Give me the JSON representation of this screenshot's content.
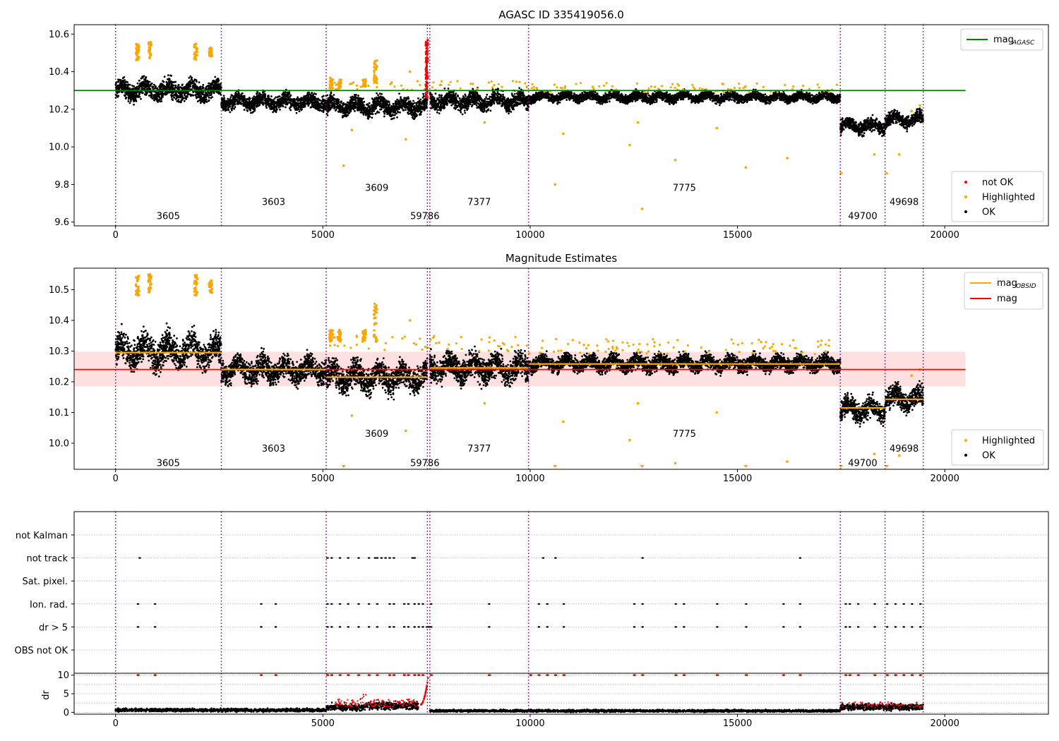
{
  "figure": {
    "background": "#ffffff",
    "colors": {
      "ok": "#000000",
      "highlighted": "#ffa500",
      "not_ok": "#ff0000",
      "agasc_line": "#008000",
      "obsid_line": "#ffa500",
      "mag_line": "#ff0000",
      "band": "#ffd6d6",
      "obsid_boundary": "#800080"
    }
  },
  "chart_data": [
    {
      "type": "scatter",
      "title": "AGASC ID 335419056.0",
      "xlabel": "",
      "ylabel": "",
      "xlim": [
        -1000,
        22500
      ],
      "ylim": [
        9.58,
        10.65
      ],
      "xticks": [
        0,
        5000,
        10000,
        15000,
        20000
      ],
      "yticks": [
        9.6,
        9.8,
        10.0,
        10.2,
        10.4,
        10.6
      ],
      "ytick_labels": [
        "9.6",
        "9.8",
        "10.0",
        "10.2",
        "10.4",
        "10.6"
      ],
      "grid": false,
      "obsid_boundaries": [
        0,
        2550,
        5080,
        7520,
        7580,
        9960,
        17480,
        18560,
        19480
      ],
      "obsid_labels": [
        {
          "text": "3605",
          "x": 1270,
          "y": 9.63
        },
        {
          "text": "3603",
          "x": 3810,
          "y": 9.705
        },
        {
          "text": "3609",
          "x": 6300,
          "y": 9.78
        },
        {
          "text": "59786",
          "x": 7460,
          "y": 9.63
        },
        {
          "text": "7377",
          "x": 8770,
          "y": 9.705
        },
        {
          "text": "7775",
          "x": 13720,
          "y": 9.78
        },
        {
          "text": "49700",
          "x": 18020,
          "y": 9.63
        },
        {
          "text": "49698",
          "x": 19020,
          "y": 9.705
        }
      ],
      "reference_lines": [
        {
          "name": "mag_AGASC",
          "y": 10.3,
          "x_range": [
            -1000,
            20500
          ]
        }
      ],
      "ok_segments": [
        {
          "x": [
            0,
            2550
          ],
          "center": 10.3,
          "spread": 0.05
        },
        {
          "x": [
            2550,
            5080
          ],
          "center": 10.24,
          "spread": 0.04
        },
        {
          "x": [
            5080,
            7520
          ],
          "center": 10.215,
          "spread": 0.045
        },
        {
          "x": [
            7580,
            9960
          ],
          "center": 10.245,
          "spread": 0.045
        },
        {
          "x": [
            9960,
            17480
          ],
          "center": 10.265,
          "spread": 0.025
        },
        {
          "x": [
            17480,
            18560
          ],
          "center": 10.11,
          "spread": 0.035
        },
        {
          "x": [
            18560,
            19480
          ],
          "center": 10.145,
          "spread": 0.035
        }
      ],
      "highlighted_clusters": [
        {
          "x": 530,
          "y": [
            10.46,
            10.55
          ]
        },
        {
          "x": 830,
          "y": [
            10.47,
            10.56
          ]
        },
        {
          "x": 1930,
          "y": [
            10.46,
            10.56
          ]
        },
        {
          "x": 2290,
          "y": [
            10.48,
            10.53
          ]
        },
        {
          "x": 5200,
          "y": [
            10.31,
            10.37
          ]
        },
        {
          "x": 5400,
          "y": [
            10.31,
            10.36
          ]
        },
        {
          "x": 6000,
          "y": [
            10.32,
            10.36
          ]
        },
        {
          "x": 6270,
          "y": [
            10.33,
            10.46
          ]
        }
      ],
      "highlighted_outliers": [
        {
          "x": 5500,
          "y": 9.9
        },
        {
          "x": 5700,
          "y": 10.09
        },
        {
          "x": 7000,
          "y": 10.04
        },
        {
          "x": 7100,
          "y": 10.4
        },
        {
          "x": 8900,
          "y": 10.13
        },
        {
          "x": 10600,
          "y": 9.8
        },
        {
          "x": 10800,
          "y": 10.07
        },
        {
          "x": 12400,
          "y": 10.01
        },
        {
          "x": 12600,
          "y": 10.13
        },
        {
          "x": 12700,
          "y": 9.67
        },
        {
          "x": 13500,
          "y": 9.93
        },
        {
          "x": 14500,
          "y": 10.1
        },
        {
          "x": 15200,
          "y": 9.89
        },
        {
          "x": 16200,
          "y": 9.94
        },
        {
          "x": 17500,
          "y": 9.86
        },
        {
          "x": 18300,
          "y": 9.96
        },
        {
          "x": 18600,
          "y": 9.86
        },
        {
          "x": 18900,
          "y": 9.96
        },
        {
          "x": 19200,
          "y": 10.19
        },
        {
          "x": 19400,
          "y": 10.22
        }
      ],
      "not_ok_cluster": {
        "x": [
          7480,
          7530
        ],
        "y": [
          10.26,
          10.57
        ]
      },
      "legend_top": {
        "placement": "top-right",
        "entries": [
          {
            "label": "mag",
            "sub": "AGASC",
            "color": "#008000"
          }
        ]
      },
      "legend_bottom": {
        "placement": "lower-right",
        "entries": [
          {
            "label": "not OK",
            "color": "#ff0000"
          },
          {
            "label": "Highlighted",
            "color": "#ffa500"
          },
          {
            "label": "OK",
            "color": "#000000"
          }
        ]
      }
    },
    {
      "type": "scatter",
      "title": "Magnitude Estimates",
      "xlabel": "",
      "ylabel": "",
      "xlim": [
        -1000,
        22500
      ],
      "ylim": [
        9.915,
        10.57
      ],
      "xticks": [
        0,
        5000,
        10000,
        15000,
        20000
      ],
      "yticks": [
        10.0,
        10.1,
        10.2,
        10.3,
        10.4,
        10.5
      ],
      "ytick_labels": [
        "10.0",
        "10.1",
        "10.2",
        "10.3",
        "10.4",
        "10.5"
      ],
      "grid": false,
      "obsid_boundaries": [
        0,
        2550,
        5080,
        7520,
        7580,
        9960,
        17480,
        18560,
        19480
      ],
      "obsid_labels": [
        {
          "text": "3605",
          "x": 1270,
          "y": 9.935
        },
        {
          "text": "3603",
          "x": 3810,
          "y": 9.982
        },
        {
          "text": "3609",
          "x": 6300,
          "y": 10.03
        },
        {
          "text": "59786",
          "x": 7460,
          "y": 9.935
        },
        {
          "text": "7377",
          "x": 8770,
          "y": 9.982
        },
        {
          "text": "7775",
          "x": 13720,
          "y": 10.03
        },
        {
          "text": "49700",
          "x": 18020,
          "y": 9.935
        },
        {
          "text": "49698",
          "x": 19020,
          "y": 9.982
        }
      ],
      "mag_line": {
        "name": "mag",
        "y": 10.24,
        "x_range": [
          -1000,
          20500
        ],
        "band": [
          10.185,
          10.298
        ]
      },
      "obsid_mags": [
        {
          "x": [
            0,
            2550
          ],
          "y": 10.295
        },
        {
          "x": [
            2550,
            5080
          ],
          "y": 10.24
        },
        {
          "x": [
            5080,
            7520
          ],
          "y": 10.215
        },
        {
          "x": [
            7580,
            9960
          ],
          "y": 10.245
        },
        {
          "x": [
            9960,
            17480
          ],
          "y": 10.258
        },
        {
          "x": [
            17480,
            18560
          ],
          "y": 10.115
        },
        {
          "x": [
            18560,
            19480
          ],
          "y": 10.143
        }
      ],
      "ok_segments": [
        {
          "x": [
            0,
            2550
          ],
          "center": 10.3,
          "spread": 0.05
        },
        {
          "x": [
            2550,
            5080
          ],
          "center": 10.24,
          "spread": 0.04
        },
        {
          "x": [
            5080,
            7520
          ],
          "center": 10.215,
          "spread": 0.045
        },
        {
          "x": [
            7580,
            9960
          ],
          "center": 10.245,
          "spread": 0.045
        },
        {
          "x": [
            9960,
            17480
          ],
          "center": 10.26,
          "spread": 0.025
        },
        {
          "x": [
            17480,
            18560
          ],
          "center": 10.11,
          "spread": 0.035
        },
        {
          "x": [
            18560,
            19480
          ],
          "center": 10.145,
          "spread": 0.035
        }
      ],
      "highlighted_clusters": [
        {
          "x": 530,
          "y": [
            10.48,
            10.545
          ]
        },
        {
          "x": 830,
          "y": [
            10.49,
            10.55
          ]
        },
        {
          "x": 1930,
          "y": [
            10.48,
            10.55
          ]
        },
        {
          "x": 2290,
          "y": [
            10.49,
            10.53
          ]
        },
        {
          "x": 5200,
          "y": [
            10.33,
            10.37
          ]
        },
        {
          "x": 5400,
          "y": [
            10.33,
            10.37
          ]
        },
        {
          "x": 6000,
          "y": [
            10.33,
            10.37
          ]
        },
        {
          "x": 6270,
          "y": [
            10.33,
            10.46
          ]
        }
      ],
      "highlighted_outliers": [
        {
          "x": 5700,
          "y": 10.09
        },
        {
          "x": 7000,
          "y": 10.04
        },
        {
          "x": 7100,
          "y": 10.4
        },
        {
          "x": 8900,
          "y": 10.13
        },
        {
          "x": 10800,
          "y": 10.07
        },
        {
          "x": 12400,
          "y": 10.01
        },
        {
          "x": 12600,
          "y": 10.13
        },
        {
          "x": 13500,
          "y": 9.935
        },
        {
          "x": 14500,
          "y": 10.1
        },
        {
          "x": 16200,
          "y": 9.94
        },
        {
          "x": 18300,
          "y": 9.965
        },
        {
          "x": 18900,
          "y": 9.96
        },
        {
          "x": 19200,
          "y": 10.22
        },
        {
          "x": 19400,
          "y": 10.24
        }
      ],
      "clipped_markers_x": [
        5500,
        10600,
        12700,
        15200,
        17500,
        18600
      ],
      "legend_top": {
        "placement": "top-right",
        "entries": [
          {
            "label": "mag",
            "sub": "OBSID",
            "color": "#ffa500"
          },
          {
            "label": "mag",
            "sub": "",
            "color": "#ff0000"
          }
        ]
      },
      "legend_bottom": {
        "placement": "lower-right",
        "entries": [
          {
            "label": "Highlighted",
            "color": "#ffa500"
          },
          {
            "label": "OK",
            "color": "#000000"
          }
        ]
      }
    },
    {
      "type": "scatter",
      "title": "",
      "xlabel": "",
      "ylabel": "",
      "xlim": [
        -1000,
        22500
      ],
      "grid": true,
      "flag_rows": [
        "not Kalman",
        "not track",
        "Sat. pixel.",
        "Ion. rad.",
        "dr > 5",
        "OBS not OK"
      ],
      "obsid_boundaries": [
        0,
        2550,
        5080,
        7520,
        7580,
        9960,
        17480,
        18560,
        19480
      ],
      "flags": {
        "not track": [
          570,
          5100,
          5200,
          5400,
          5600,
          5850,
          6100,
          6250,
          6300,
          6400,
          6500,
          6600,
          6700,
          7150,
          7200,
          10300,
          10600,
          12700,
          16500
        ],
        "Ion. rad.": [
          530,
          940,
          3500,
          3850,
          5100,
          5200,
          5400,
          5600,
          5850,
          6100,
          6300,
          6600,
          6700,
          6950,
          7050,
          7200,
          7300,
          7400,
          7600,
          9000,
          10200,
          10400,
          10800,
          12500,
          12700,
          13500,
          13700,
          14500,
          15200,
          16100,
          16500,
          17600,
          17700,
          17900,
          18300,
          18600,
          18800,
          19000,
          19200,
          19400
        ],
        "dr > 5": [
          530,
          940,
          3500,
          3850,
          5100,
          5200,
          5400,
          5600,
          5850,
          6100,
          6300,
          6600,
          6700,
          6950,
          7050,
          7200,
          7300,
          7400,
          7500,
          7550,
          7600,
          9000,
          10200,
          10400,
          10800,
          12500,
          12700,
          13500,
          13700,
          14500,
          15200,
          16100,
          16500,
          17600,
          17700,
          17900,
          18300,
          18600,
          18800,
          19000,
          19200,
          19400
        ]
      }
    },
    {
      "type": "scatter",
      "title": "",
      "xlabel": "",
      "ylabel": "dr",
      "xlim": [
        -1000,
        22500
      ],
      "ylim": [
        -0.5,
        10.5
      ],
      "xticks": [
        0,
        5000,
        10000,
        15000,
        20000
      ],
      "yticks": [
        0,
        5,
        10
      ],
      "ytick_labels": [
        "0",
        "5",
        "10"
      ],
      "grid": true,
      "obsid_boundaries": [
        0,
        2550,
        5080,
        7520,
        7580,
        9960,
        17480,
        18560,
        19480
      ],
      "dr_segments": [
        {
          "x": [
            0,
            5080
          ],
          "center": 0.6,
          "spread": 0.4
        },
        {
          "x": [
            5080,
            6000
          ],
          "center": 1.3,
          "spread": 0.9
        },
        {
          "x": [
            6000,
            7300
          ],
          "center": 1.8,
          "spread": 1.0
        },
        {
          "x": [
            7580,
            17480
          ],
          "center": 0.4,
          "spread": 0.3
        },
        {
          "x": [
            17480,
            19480
          ],
          "center": 1.4,
          "spread": 0.8
        }
      ],
      "dr_red_rise": {
        "x": [
          7350,
          7540
        ],
        "y": [
          2.0,
          9.5
        ]
      },
      "dr_red_at_ten": [
        530,
        940,
        3500,
        3850,
        5100,
        5200,
        5400,
        5600,
        5850,
        6100,
        6300,
        6600,
        6700,
        6950,
        7050,
        7200,
        7300,
        7400,
        7600,
        9000,
        10000,
        10200,
        10400,
        10600,
        10800,
        12500,
        12700,
        13500,
        13700,
        14500,
        15200,
        16100,
        16500,
        17600,
        17700,
        17900,
        18300,
        18600,
        18800,
        19000,
        19200,
        19400
      ]
    }
  ]
}
